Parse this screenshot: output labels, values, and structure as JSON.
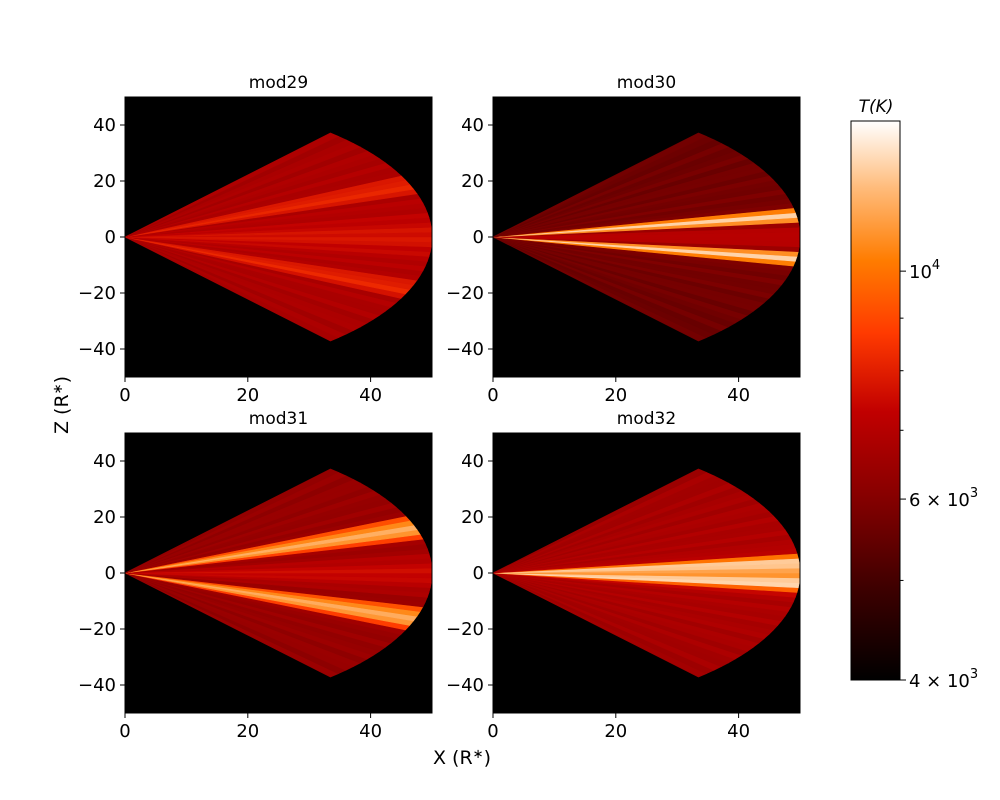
{
  "chart_data": {
    "type": "heatmap",
    "xlabel": "X (R",
    "ylabel": "Z (R",
    "label_sub": "∗",
    "label_close": ")",
    "xlim": [
      0,
      50
    ],
    "ylim": [
      -50,
      50
    ],
    "x_ticks": [
      "0",
      "20",
      "40"
    ],
    "y_ticks": [
      "40",
      "20",
      "0",
      "−20",
      "−40"
    ],
    "cone_outer_radius": 50,
    "cone_half_angle_deg": 48,
    "colorbar": {
      "title": "T(K)",
      "scale": "log",
      "range": [
        4000,
        14000
      ],
      "tick_labels": [
        {
          "value": 10000,
          "base": "10",
          "exp": "4"
        },
        {
          "value": 6000,
          "base": "6 × 10",
          "exp": "3"
        },
        {
          "value": 4000,
          "base": "4 × 10",
          "exp": "3"
        }
      ],
      "minor_ticks": [
        5000,
        7000,
        8000,
        9000
      ],
      "colormap": "gist_heat"
    },
    "panels": [
      {
        "title": "mod29",
        "bg_temperature": 6700,
        "wind_temperature": 7100,
        "disk_temperature": 7800,
        "band_temperature": 8200,
        "band_angle_deg": 22,
        "band_width_deg": 5
      },
      {
        "title": "mod30",
        "bg_temperature": 5600,
        "wind_temperature": 5900,
        "disk_temperature": 7300,
        "band_temperature": 12500,
        "band_angle_deg": 9,
        "band_width_deg": 4
      },
      {
        "title": "mod31",
        "bg_temperature": 6300,
        "wind_temperature": 6600,
        "disk_temperature": 7600,
        "band_temperature": 11500,
        "band_angle_deg": 19,
        "band_width_deg": 6
      },
      {
        "title": "mod32",
        "bg_temperature": 6600,
        "wind_temperature": 7000,
        "disk_temperature": 10300,
        "band_temperature": 12800,
        "band_angle_deg": 4,
        "band_width_deg": 4
      }
    ]
  }
}
